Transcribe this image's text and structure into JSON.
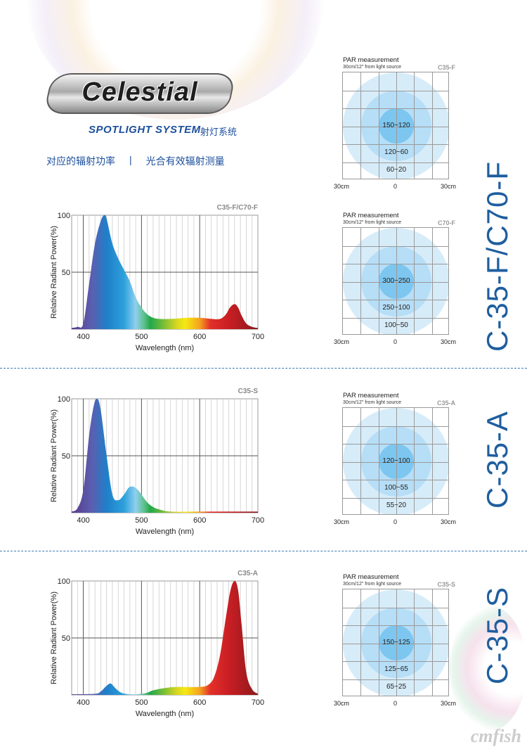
{
  "brand": {
    "logo_text": "Celestial",
    "subtitle": "SPOTLIGHT SYSTEM",
    "subtitle_cn": "射灯系统"
  },
  "headings": {
    "left": "对应的辐射功率",
    "divider": "|",
    "right": "光合有效辐射测量"
  },
  "colors": {
    "accent": "#1c4f9c",
    "model_text": "#1e5e9e",
    "separator": "#3a7ab5"
  },
  "sections": [
    {
      "model_label": "C-35-F/C70-F"
    },
    {
      "model_label": "C-35-A"
    },
    {
      "model_label": "C-35-S"
    }
  ],
  "par_panels": [
    {
      "title": "PAR measurement",
      "subtitle": "30cm/12\" from light source",
      "model": "C35-F",
      "inner": "150~120",
      "middle": "120~60",
      "outer": "60~20",
      "axis": [
        "30cm",
        "0",
        "30cm"
      ]
    },
    {
      "title": "PAR measurement",
      "subtitle": "30cm/12\" from light source",
      "model": "C70-F",
      "inner": "300~250",
      "middle": "250~100",
      "outer": "100~50",
      "axis": [
        "30cm",
        "0",
        "30cm"
      ]
    },
    {
      "title": "PAR measurement",
      "subtitle": "30cm/12\" from light source",
      "model": "C35-A",
      "inner": "120~100",
      "middle": "100~55",
      "outer": "55~20",
      "axis": [
        "30cm",
        "0",
        "30cm"
      ]
    },
    {
      "title": "PAR measurement",
      "subtitle": "30cm/12\" from light source",
      "model": "C35-S",
      "inner": "150~125",
      "middle": "125~65",
      "outer": "65~25",
      "axis": [
        "30cm",
        "0",
        "30cm"
      ]
    }
  ],
  "watermark": "cmfish",
  "chart_data": [
    {
      "type": "area",
      "title": "C35-F/C70-F",
      "xlabel": "Wavelength (nm)",
      "ylabel": "Relative Radiant Power(%)",
      "xlim": [
        380,
        700
      ],
      "ylim": [
        0,
        100
      ],
      "xticks": [
        "400",
        "500",
        "600",
        "700"
      ],
      "yticks": [
        "50",
        "100"
      ],
      "grid": true,
      "x": [
        380,
        390,
        400,
        410,
        420,
        430,
        436,
        440,
        450,
        460,
        470,
        480,
        490,
        500,
        510,
        520,
        530,
        550,
        580,
        600,
        620,
        635,
        645,
        652,
        660,
        666,
        672,
        680,
        690,
        700
      ],
      "y": [
        1,
        2,
        5,
        40,
        75,
        95,
        100,
        97,
        75,
        62,
        52,
        42,
        28,
        19,
        13,
        10,
        9,
        9,
        10,
        10,
        9,
        9,
        13,
        19,
        22,
        19,
        12,
        5,
        2,
        1
      ]
    },
    {
      "type": "area",
      "title": "C35-S",
      "xlabel": "Wavelength (nm)",
      "ylabel": "Relative Radiant Power(%)",
      "xlim": [
        380,
        700
      ],
      "ylim": [
        0,
        100
      ],
      "xticks": [
        "400",
        "500",
        "600",
        "700"
      ],
      "yticks": [
        "50",
        "100"
      ],
      "grid": true,
      "x": [
        380,
        390,
        400,
        410,
        418,
        424,
        430,
        440,
        450,
        460,
        470,
        478,
        485,
        492,
        500,
        510,
        520,
        530,
        550,
        600,
        700
      ],
      "y": [
        1,
        4,
        20,
        68,
        94,
        100,
        90,
        50,
        16,
        11,
        16,
        22,
        23,
        21,
        16,
        9,
        5,
        3,
        1,
        1,
        1
      ]
    },
    {
      "type": "area",
      "title": "C35-A",
      "xlabel": "Wavelength (nm)",
      "ylabel": "Relative Radiant Power(%)",
      "xlim": [
        380,
        700
      ],
      "ylim": [
        0,
        100
      ],
      "xticks": [
        "400",
        "500",
        "600",
        "700"
      ],
      "yticks": [
        "50",
        "100"
      ],
      "grid": true,
      "x": [
        380,
        420,
        430,
        440,
        447,
        455,
        465,
        480,
        500,
        510,
        520,
        540,
        560,
        600,
        615,
        625,
        635,
        645,
        653,
        660,
        666,
        672,
        680,
        690,
        700
      ],
      "y": [
        0.5,
        1,
        3,
        8,
        10,
        6,
        2,
        0.5,
        1,
        2,
        4,
        6,
        7,
        7,
        9,
        16,
        35,
        68,
        92,
        100,
        92,
        62,
        20,
        5,
        1
      ]
    }
  ]
}
